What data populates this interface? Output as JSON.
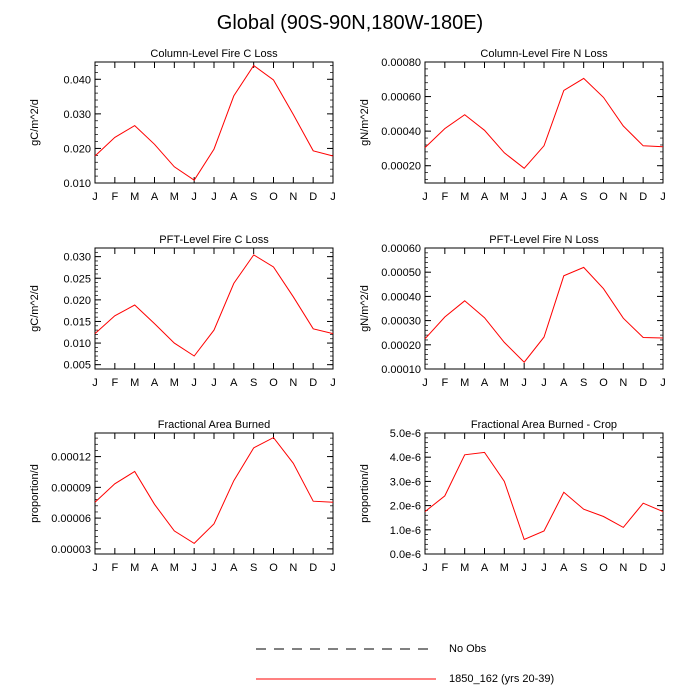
{
  "title": "Global (90S-90N,180W-180E)",
  "months": [
    "J",
    "F",
    "M",
    "A",
    "M",
    "J",
    "J",
    "A",
    "S",
    "O",
    "N",
    "D",
    "J"
  ],
  "legend": [
    {
      "label": "No Obs",
      "color": "#000000",
      "dash": "dashed"
    },
    {
      "label": "1850_162 (yrs 20-39)",
      "color": "#ff0000",
      "dash": "solid"
    }
  ],
  "chart_data": [
    {
      "type": "line",
      "title": "Column-Level Fire C Loss",
      "ylabel": "gC/m^2/d",
      "categories": [
        "J",
        "F",
        "M",
        "A",
        "M",
        "J",
        "J",
        "A",
        "S",
        "O",
        "N",
        "D",
        "J"
      ],
      "ylim": [
        0.01,
        0.045
      ],
      "yticks": [
        0.01,
        0.02,
        0.03,
        0.04
      ],
      "ytick_labels": [
        "0.010",
        "0.020",
        "0.030",
        "0.040"
      ],
      "series": [
        {
          "name": "1850_162 (yrs 20-39)",
          "color": "#ff0000",
          "values": [
            0.0178,
            0.0232,
            0.0266,
            0.0212,
            0.0147,
            0.0108,
            0.0198,
            0.0352,
            0.044,
            0.0398,
            0.0298,
            0.0193,
            0.0178
          ]
        }
      ]
    },
    {
      "type": "line",
      "title": "Column-Level Fire N Loss",
      "ylabel": "gN/m^2/d",
      "categories": [
        "J",
        "F",
        "M",
        "A",
        "M",
        "J",
        "J",
        "A",
        "S",
        "O",
        "N",
        "D",
        "J"
      ],
      "ylim": [
        0.0001,
        0.0008
      ],
      "yticks": [
        0.0002,
        0.0004,
        0.0006,
        0.0008
      ],
      "ytick_labels": [
        "0.00020",
        "0.00040",
        "0.00060",
        "0.00080"
      ],
      "series": [
        {
          "name": "1850_162 (yrs 20-39)",
          "color": "#ff0000",
          "values": [
            0.000305,
            0.000415,
            0.000495,
            0.000405,
            0.000275,
            0.000185,
            0.000315,
            0.000635,
            0.000705,
            0.000595,
            0.00043,
            0.000315,
            0.00031
          ]
        }
      ]
    },
    {
      "type": "line",
      "title": "PFT-Level Fire C Loss",
      "ylabel": "gC/m^2/d",
      "categories": [
        "J",
        "F",
        "M",
        "A",
        "M",
        "J",
        "J",
        "A",
        "S",
        "O",
        "N",
        "D",
        "J"
      ],
      "ylim": [
        0.004,
        0.032
      ],
      "yticks": [
        0.005,
        0.01,
        0.015,
        0.02,
        0.025,
        0.03
      ],
      "ytick_labels": [
        "0.005",
        "0.010",
        "0.015",
        "0.020",
        "0.025",
        "0.030"
      ],
      "series": [
        {
          "name": "1850_162 (yrs 20-39)",
          "color": "#ff0000",
          "values": [
            0.0122,
            0.0163,
            0.0188,
            0.0145,
            0.01,
            0.007,
            0.013,
            0.0238,
            0.0304,
            0.0276,
            0.0207,
            0.0133,
            0.0122
          ]
        }
      ]
    },
    {
      "type": "line",
      "title": "PFT-Level Fire N Loss",
      "ylabel": "gN/m^2/d",
      "categories": [
        "J",
        "F",
        "M",
        "A",
        "M",
        "J",
        "J",
        "A",
        "S",
        "O",
        "N",
        "D",
        "J"
      ],
      "ylim": [
        0.0001,
        0.0006
      ],
      "yticks": [
        0.0001,
        0.0002,
        0.0003,
        0.0004,
        0.0005,
        0.0006
      ],
      "ytick_labels": [
        "0.00010",
        "0.00020",
        "0.00030",
        "0.00040",
        "0.00050",
        "0.00060"
      ],
      "series": [
        {
          "name": "1850_162 (yrs 20-39)",
          "color": "#ff0000",
          "values": [
            0.000225,
            0.000315,
            0.000382,
            0.000312,
            0.00021,
            0.000128,
            0.000232,
            0.000485,
            0.00052,
            0.000432,
            0.00031,
            0.00023,
            0.000228
          ]
        }
      ]
    },
    {
      "type": "line",
      "title": "Fractional Area Burned",
      "ylabel": "proportion/d",
      "categories": [
        "J",
        "F",
        "M",
        "A",
        "M",
        "J",
        "J",
        "A",
        "S",
        "O",
        "N",
        "D",
        "J"
      ],
      "ylim": [
        2.5e-05,
        0.000143
      ],
      "yticks": [
        3e-05,
        6e-05,
        9e-05,
        0.00012
      ],
      "ytick_labels": [
        "0.00003",
        "0.00006",
        "0.00009",
        "0.00012"
      ],
      "series": [
        {
          "name": "1850_162 (yrs 20-39)",
          "color": "#ff0000",
          "values": [
            7.55e-05,
            9.35e-05,
            0.0001055,
            7.35e-05,
            4.75e-05,
            3.53e-05,
            5.45e-05,
            9.65e-05,
            0.0001285,
            0.0001385,
            0.0001135,
            7.65e-05,
            7.55e-05
          ]
        }
      ]
    },
    {
      "type": "line",
      "title": "Fractional Area Burned - Crop",
      "ylabel": "proportion/d",
      "categories": [
        "J",
        "F",
        "M",
        "A",
        "M",
        "J",
        "J",
        "A",
        "S",
        "O",
        "N",
        "D",
        "J"
      ],
      "ylim": [
        0.0,
        5e-06
      ],
      "yticks": [
        0.0,
        1e-06,
        2e-06,
        3e-06,
        4e-06,
        5e-06
      ],
      "ytick_labels": [
        "0.0e-6",
        "1.0e-6",
        "2.0e-6",
        "3.0e-6",
        "4.0e-6",
        "5.0e-6"
      ],
      "series": [
        {
          "name": "1850_162 (yrs 20-39)",
          "color": "#ff0000",
          "values": [
            1.75e-06,
            2.4e-06,
            4.1e-06,
            4.2e-06,
            3e-06,
            6e-07,
            9.5e-07,
            2.55e-06,
            1.85e-06,
            1.55e-06,
            1.1e-06,
            2.1e-06,
            1.75e-06
          ]
        }
      ]
    }
  ]
}
